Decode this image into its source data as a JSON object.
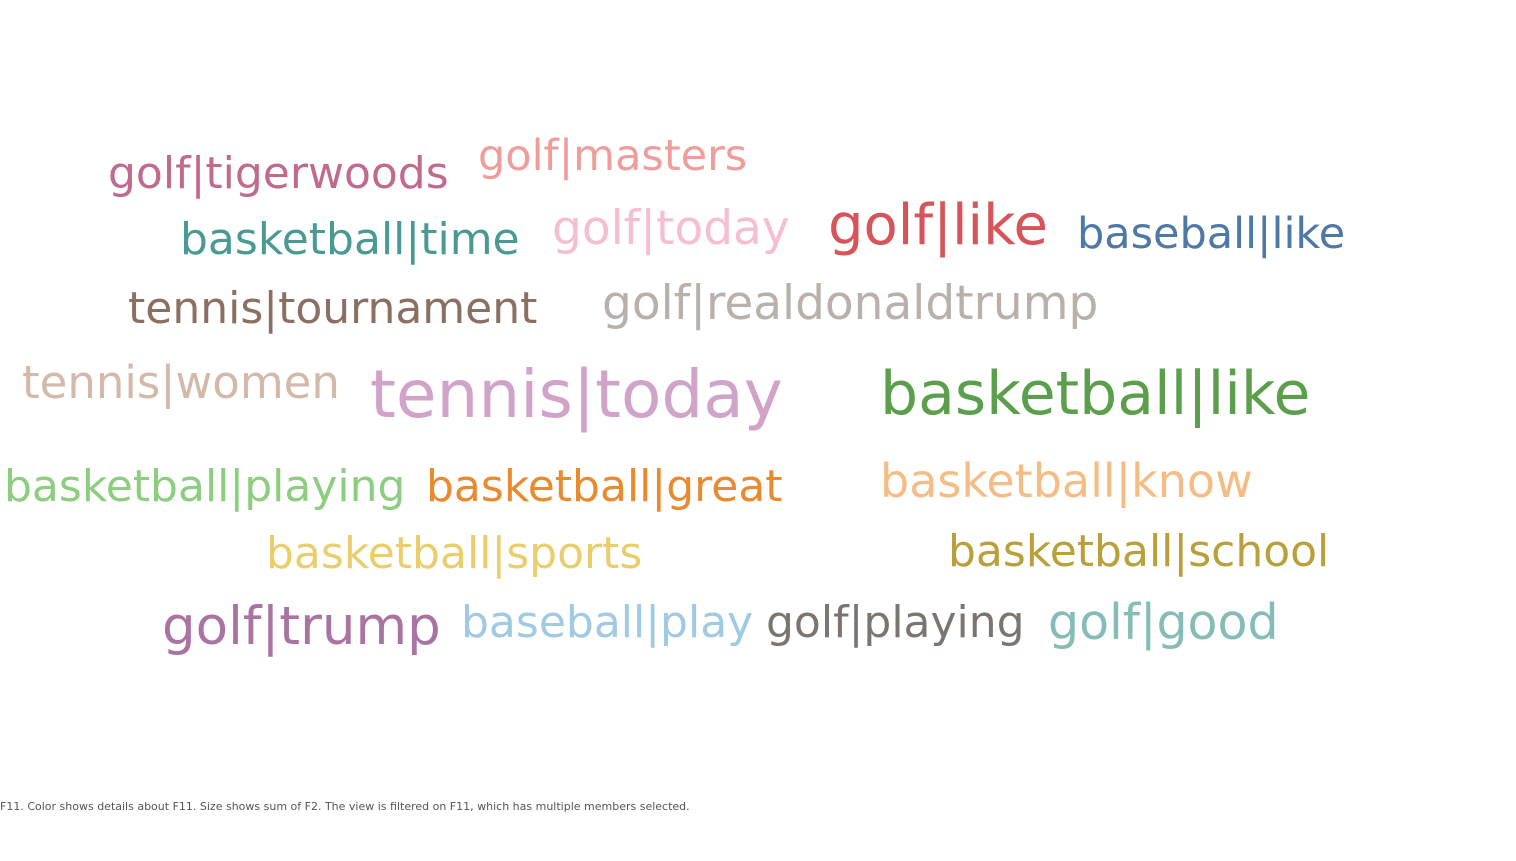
{
  "chart_data": {
    "type": "wordcloud",
    "caption": "F11.  Color shows details about F11.  Size shows sum of F2. The view is filtered on F11, which has multiple members selected.",
    "words": [
      {
        "text": "golf|tigerwoods",
        "color": "#c06b8e"
      },
      {
        "text": "golf|masters",
        "color": "#ee9d9b"
      },
      {
        "text": "basketball|time",
        "color": "#4a9a93"
      },
      {
        "text": "golf|today",
        "color": "#f5bfd0"
      },
      {
        "text": "golf|like",
        "color": "#d6545a"
      },
      {
        "text": "baseball|like",
        "color": "#4e78a5"
      },
      {
        "text": "tennis|tournament",
        "color": "#8b6f60"
      },
      {
        "text": "golf|realdonaldtrump",
        "color": "#b8b0ab"
      },
      {
        "text": "tennis|women",
        "color": "#d4b9a9"
      },
      {
        "text": "tennis|today",
        "color": "#d2a3c8"
      },
      {
        "text": "basketball|like",
        "color": "#5b9f4c"
      },
      {
        "text": "basketball|playing",
        "color": "#8ccd80"
      },
      {
        "text": "basketball|great",
        "color": "#e98a2f"
      },
      {
        "text": "basketball|know",
        "color": "#f5bd85"
      },
      {
        "text": "basketball|sports",
        "color": "#eace6e"
      },
      {
        "text": "basketball|school",
        "color": "#b9a03b"
      },
      {
        "text": "golf|trump",
        "color": "#a974a2"
      },
      {
        "text": "baseball|play",
        "color": "#a0c9e4"
      },
      {
        "text": "golf|playing",
        "color": "#7a7571"
      },
      {
        "text": "golf|good",
        "color": "#86bcb6"
      }
    ]
  }
}
